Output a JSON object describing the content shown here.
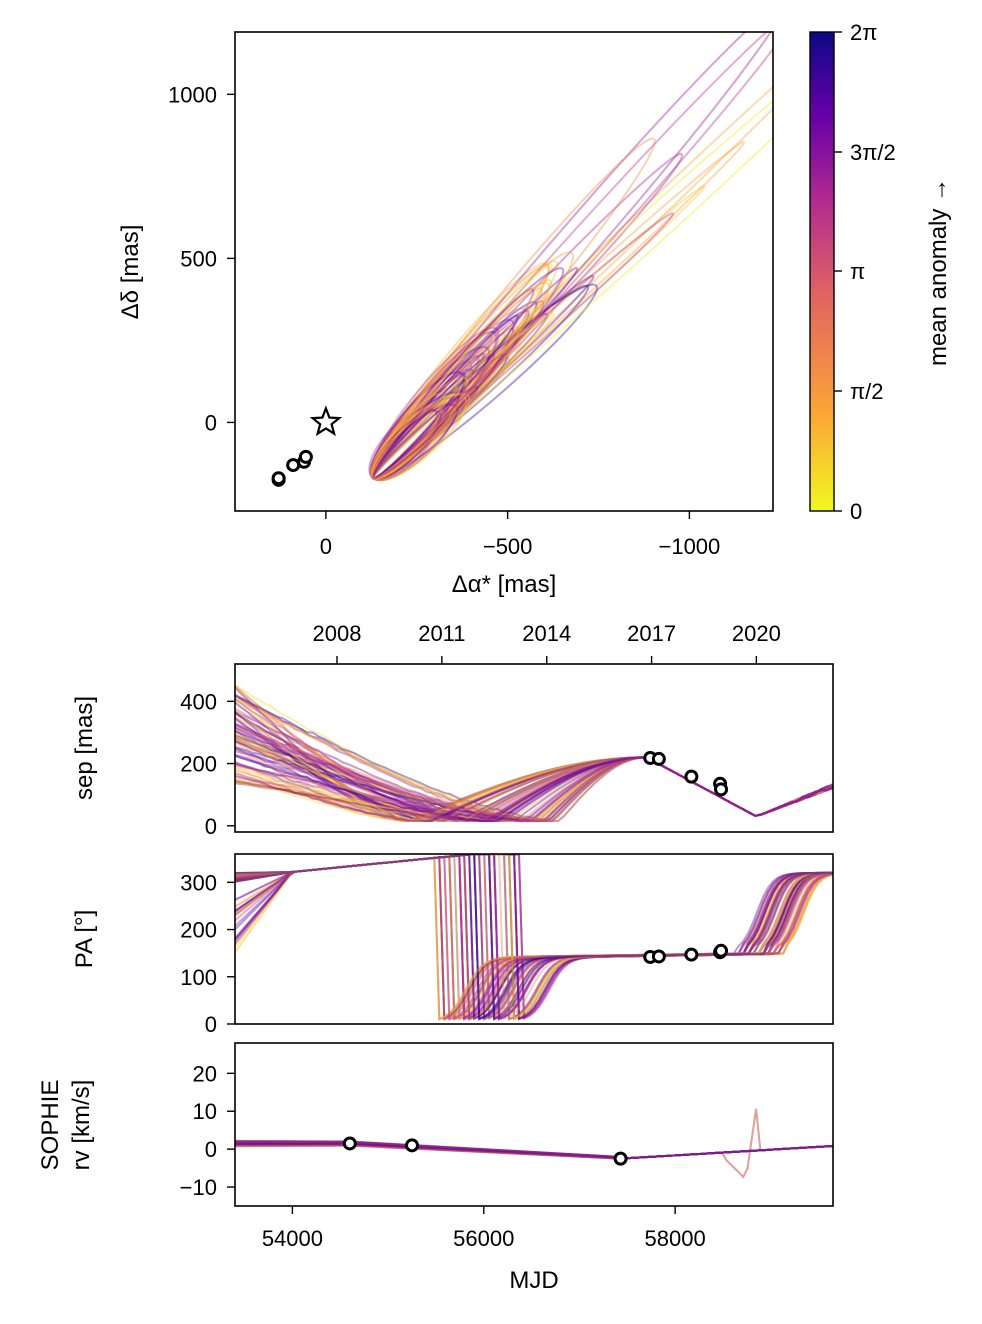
{
  "chart_data": [
    {
      "id": "sky",
      "type": "line",
      "xlabel": "Δα* [mas]",
      "ylabel": "Δδ [mas]",
      "xlim": [
        250,
        -1230
      ],
      "ylim": [
        -270,
        1190
      ],
      "xticks": [
        0,
        -500,
        -1000
      ],
      "xtick_labels": [
        "0",
        "−500",
        "−1000"
      ],
      "yticks": [
        0,
        500,
        1000
      ],
      "ytick_labels": [
        "0",
        "500",
        "1000"
      ],
      "star": [
        0,
        0
      ],
      "obs_x": [
        130,
        90,
        60,
        55,
        130
      ],
      "obs_y": [
        -175,
        -130,
        -120,
        -105,
        -170
      ]
    },
    {
      "id": "sep",
      "type": "line",
      "xlim": [
        53400,
        59650
      ],
      "ylabel": "sep [mas]",
      "ylim": [
        -20,
        520
      ],
      "yticks": [
        0,
        200,
        400
      ],
      "ytick_labels": [
        "0",
        "200",
        "400"
      ],
      "top_axis_ticks": [
        54466,
        55562,
        56658,
        57754,
        58849
      ],
      "top_axis_labels": [
        "2008",
        "2011",
        "2014",
        "2017",
        "2020"
      ],
      "obs_x": [
        57740,
        57830,
        58170,
        58470,
        58480
      ],
      "obs_y": [
        218,
        215,
        158,
        135,
        117
      ]
    },
    {
      "id": "pa",
      "type": "line",
      "xlim": [
        53400,
        59650
      ],
      "ylabel": "PA [°]",
      "ylim": [
        0,
        360
      ],
      "yticks": [
        0,
        100,
        200,
        300
      ],
      "ytick_labels": [
        "0",
        "100",
        "200",
        "300"
      ],
      "obs_x": [
        57740,
        57830,
        58170,
        58470,
        58480
      ],
      "obs_y": [
        142,
        143,
        147,
        152,
        155
      ]
    },
    {
      "id": "rv",
      "type": "line",
      "xlim": [
        53400,
        59650
      ],
      "xlabel": "MJD",
      "xticks": [
        54000,
        56000,
        58000
      ],
      "xtick_labels": [
        "54000",
        "56000",
        "58000"
      ],
      "ylabel_lines": [
        "SOPHIE",
        "rv [km/s]"
      ],
      "ylim": [
        -15,
        28
      ],
      "yticks": [
        -10,
        0,
        10,
        20
      ],
      "ytick_labels": [
        "−10",
        "0",
        "10",
        "20"
      ],
      "obs_x": [
        54600,
        55250,
        57430
      ],
      "obs_y": [
        1.5,
        1.0,
        -2.5
      ]
    }
  ],
  "colorbar": {
    "label": "mean anomaly →",
    "tick_labels": [
      "0",
      "π/2",
      "π",
      "3π/2",
      "2π"
    ],
    "stops": [
      "#f0f921",
      "#fca636",
      "#e16462",
      "#b12a90",
      "#6a00a8",
      "#0d0887"
    ]
  }
}
